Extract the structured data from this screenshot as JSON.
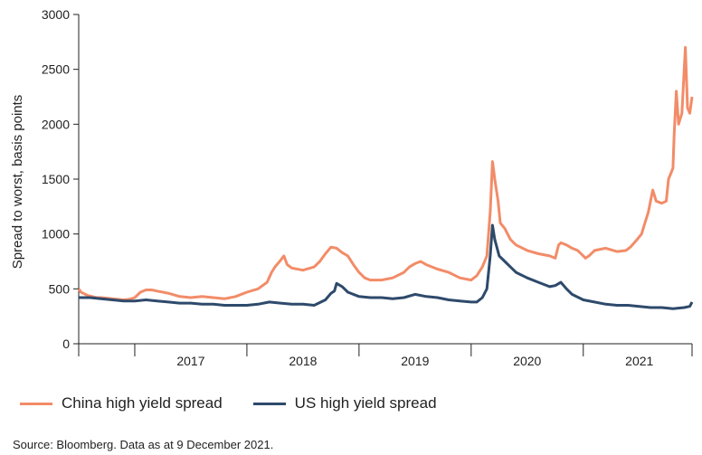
{
  "chart_data": {
    "type": "line",
    "title": "",
    "xlabel": "",
    "ylabel": "Spread to worst, basis points",
    "ylim": [
      0,
      3000
    ],
    "yticks": [
      0,
      500,
      1000,
      1500,
      2000,
      2500,
      3000
    ],
    "xlim": [
      2016.5,
      2021.97
    ],
    "xticks": [
      2016.5,
      2017,
      2018,
      2019,
      2020,
      2021,
      2021.97
    ],
    "xtick_labels": [
      {
        "label": "2017",
        "x": 2017
      },
      {
        "label": "2018",
        "x": 2018
      },
      {
        "label": "2019",
        "x": 2019
      },
      {
        "label": "2020",
        "x": 2020
      },
      {
        "label": "2021",
        "x": 2021
      }
    ],
    "legend": "bottom-left",
    "series": [
      {
        "name": "China high yield spread",
        "color": "#f28c68",
        "points": [
          [
            2016.5,
            500
          ],
          [
            2016.52,
            470
          ],
          [
            2016.55,
            455
          ],
          [
            2016.58,
            440
          ],
          [
            2016.62,
            430
          ],
          [
            2016.66,
            420
          ],
          [
            2016.7,
            420
          ],
          [
            2016.75,
            415
          ],
          [
            2016.8,
            410
          ],
          [
            2016.85,
            405
          ],
          [
            2016.9,
            400
          ],
          [
            2016.95,
            405
          ],
          [
            2017.0,
            420
          ],
          [
            2017.05,
            470
          ],
          [
            2017.1,
            490
          ],
          [
            2017.15,
            490
          ],
          [
            2017.2,
            480
          ],
          [
            2017.3,
            460
          ],
          [
            2017.4,
            430
          ],
          [
            2017.5,
            420
          ],
          [
            2017.6,
            430
          ],
          [
            2017.7,
            420
          ],
          [
            2017.8,
            410
          ],
          [
            2017.9,
            430
          ],
          [
            2018.0,
            470
          ],
          [
            2018.1,
            500
          ],
          [
            2018.18,
            560
          ],
          [
            2018.22,
            650
          ],
          [
            2018.25,
            700
          ],
          [
            2018.3,
            760
          ],
          [
            2018.33,
            800
          ],
          [
            2018.36,
            720
          ],
          [
            2018.4,
            690
          ],
          [
            2018.5,
            670
          ],
          [
            2018.6,
            700
          ],
          [
            2018.65,
            750
          ],
          [
            2018.7,
            820
          ],
          [
            2018.75,
            880
          ],
          [
            2018.8,
            870
          ],
          [
            2018.85,
            830
          ],
          [
            2018.9,
            800
          ],
          [
            2018.95,
            720
          ],
          [
            2019.0,
            650
          ],
          [
            2019.05,
            600
          ],
          [
            2019.1,
            580
          ],
          [
            2019.2,
            580
          ],
          [
            2019.3,
            600
          ],
          [
            2019.4,
            650
          ],
          [
            2019.45,
            700
          ],
          [
            2019.5,
            730
          ],
          [
            2019.55,
            750
          ],
          [
            2019.6,
            720
          ],
          [
            2019.7,
            680
          ],
          [
            2019.8,
            650
          ],
          [
            2019.9,
            600
          ],
          [
            2020.0,
            580
          ],
          [
            2020.05,
            620
          ],
          [
            2020.1,
            700
          ],
          [
            2020.14,
            800
          ],
          [
            2020.17,
            1200
          ],
          [
            2020.19,
            1660
          ],
          [
            2020.21,
            1500
          ],
          [
            2020.24,
            1300
          ],
          [
            2020.26,
            1100
          ],
          [
            2020.3,
            1050
          ],
          [
            2020.35,
            950
          ],
          [
            2020.4,
            900
          ],
          [
            2020.5,
            850
          ],
          [
            2020.6,
            820
          ],
          [
            2020.7,
            800
          ],
          [
            2020.75,
            780
          ],
          [
            2020.78,
            900
          ],
          [
            2020.8,
            920
          ],
          [
            2020.85,
            900
          ],
          [
            2020.9,
            870
          ],
          [
            2020.95,
            850
          ],
          [
            2021.0,
            800
          ],
          [
            2021.02,
            780
          ],
          [
            2021.05,
            800
          ],
          [
            2021.1,
            850
          ],
          [
            2021.2,
            870
          ],
          [
            2021.3,
            840
          ],
          [
            2021.38,
            850
          ],
          [
            2021.42,
            880
          ],
          [
            2021.48,
            950
          ],
          [
            2021.52,
            1000
          ],
          [
            2021.55,
            1100
          ],
          [
            2021.58,
            1200
          ],
          [
            2021.6,
            1300
          ],
          [
            2021.62,
            1400
          ],
          [
            2021.65,
            1300
          ],
          [
            2021.7,
            1280
          ],
          [
            2021.74,
            1300
          ],
          [
            2021.76,
            1500
          ],
          [
            2021.8,
            1600
          ],
          [
            2021.81,
            1900
          ],
          [
            2021.83,
            2300
          ],
          [
            2021.85,
            2000
          ],
          [
            2021.88,
            2100
          ],
          [
            2021.91,
            2700
          ],
          [
            2021.93,
            2150
          ],
          [
            2021.95,
            2100
          ],
          [
            2021.97,
            2250
          ]
        ]
      },
      {
        "name": "US high yield spread",
        "color": "#2e4a6b",
        "points": [
          [
            2016.5,
            420
          ],
          [
            2016.6,
            420
          ],
          [
            2016.7,
            410
          ],
          [
            2016.8,
            400
          ],
          [
            2016.9,
            390
          ],
          [
            2017.0,
            390
          ],
          [
            2017.1,
            400
          ],
          [
            2017.2,
            390
          ],
          [
            2017.3,
            380
          ],
          [
            2017.4,
            370
          ],
          [
            2017.5,
            370
          ],
          [
            2017.6,
            360
          ],
          [
            2017.7,
            360
          ],
          [
            2017.8,
            350
          ],
          [
            2017.9,
            350
          ],
          [
            2018.0,
            350
          ],
          [
            2018.1,
            360
          ],
          [
            2018.2,
            380
          ],
          [
            2018.3,
            370
          ],
          [
            2018.4,
            360
          ],
          [
            2018.5,
            360
          ],
          [
            2018.6,
            350
          ],
          [
            2018.7,
            400
          ],
          [
            2018.75,
            460
          ],
          [
            2018.78,
            480
          ],
          [
            2018.8,
            550
          ],
          [
            2018.85,
            520
          ],
          [
            2018.9,
            470
          ],
          [
            2019.0,
            430
          ],
          [
            2019.1,
            420
          ],
          [
            2019.2,
            420
          ],
          [
            2019.3,
            410
          ],
          [
            2019.4,
            420
          ],
          [
            2019.5,
            450
          ],
          [
            2019.6,
            430
          ],
          [
            2019.7,
            420
          ],
          [
            2019.8,
            400
          ],
          [
            2019.9,
            390
          ],
          [
            2020.0,
            380
          ],
          [
            2020.05,
            380
          ],
          [
            2020.1,
            420
          ],
          [
            2020.14,
            500
          ],
          [
            2020.17,
            800
          ],
          [
            2020.19,
            1080
          ],
          [
            2020.21,
            950
          ],
          [
            2020.25,
            800
          ],
          [
            2020.3,
            750
          ],
          [
            2020.35,
            700
          ],
          [
            2020.4,
            650
          ],
          [
            2020.5,
            600
          ],
          [
            2020.6,
            560
          ],
          [
            2020.7,
            520
          ],
          [
            2020.75,
            530
          ],
          [
            2020.8,
            560
          ],
          [
            2020.85,
            500
          ],
          [
            2020.9,
            450
          ],
          [
            2021.0,
            400
          ],
          [
            2021.1,
            380
          ],
          [
            2021.2,
            360
          ],
          [
            2021.3,
            350
          ],
          [
            2021.4,
            350
          ],
          [
            2021.5,
            340
          ],
          [
            2021.6,
            330
          ],
          [
            2021.7,
            330
          ],
          [
            2021.8,
            320
          ],
          [
            2021.9,
            330
          ],
          [
            2021.95,
            340
          ],
          [
            2021.97,
            380
          ]
        ]
      }
    ]
  },
  "source": "Source: Bloomberg. Data as at 9 December 2021."
}
